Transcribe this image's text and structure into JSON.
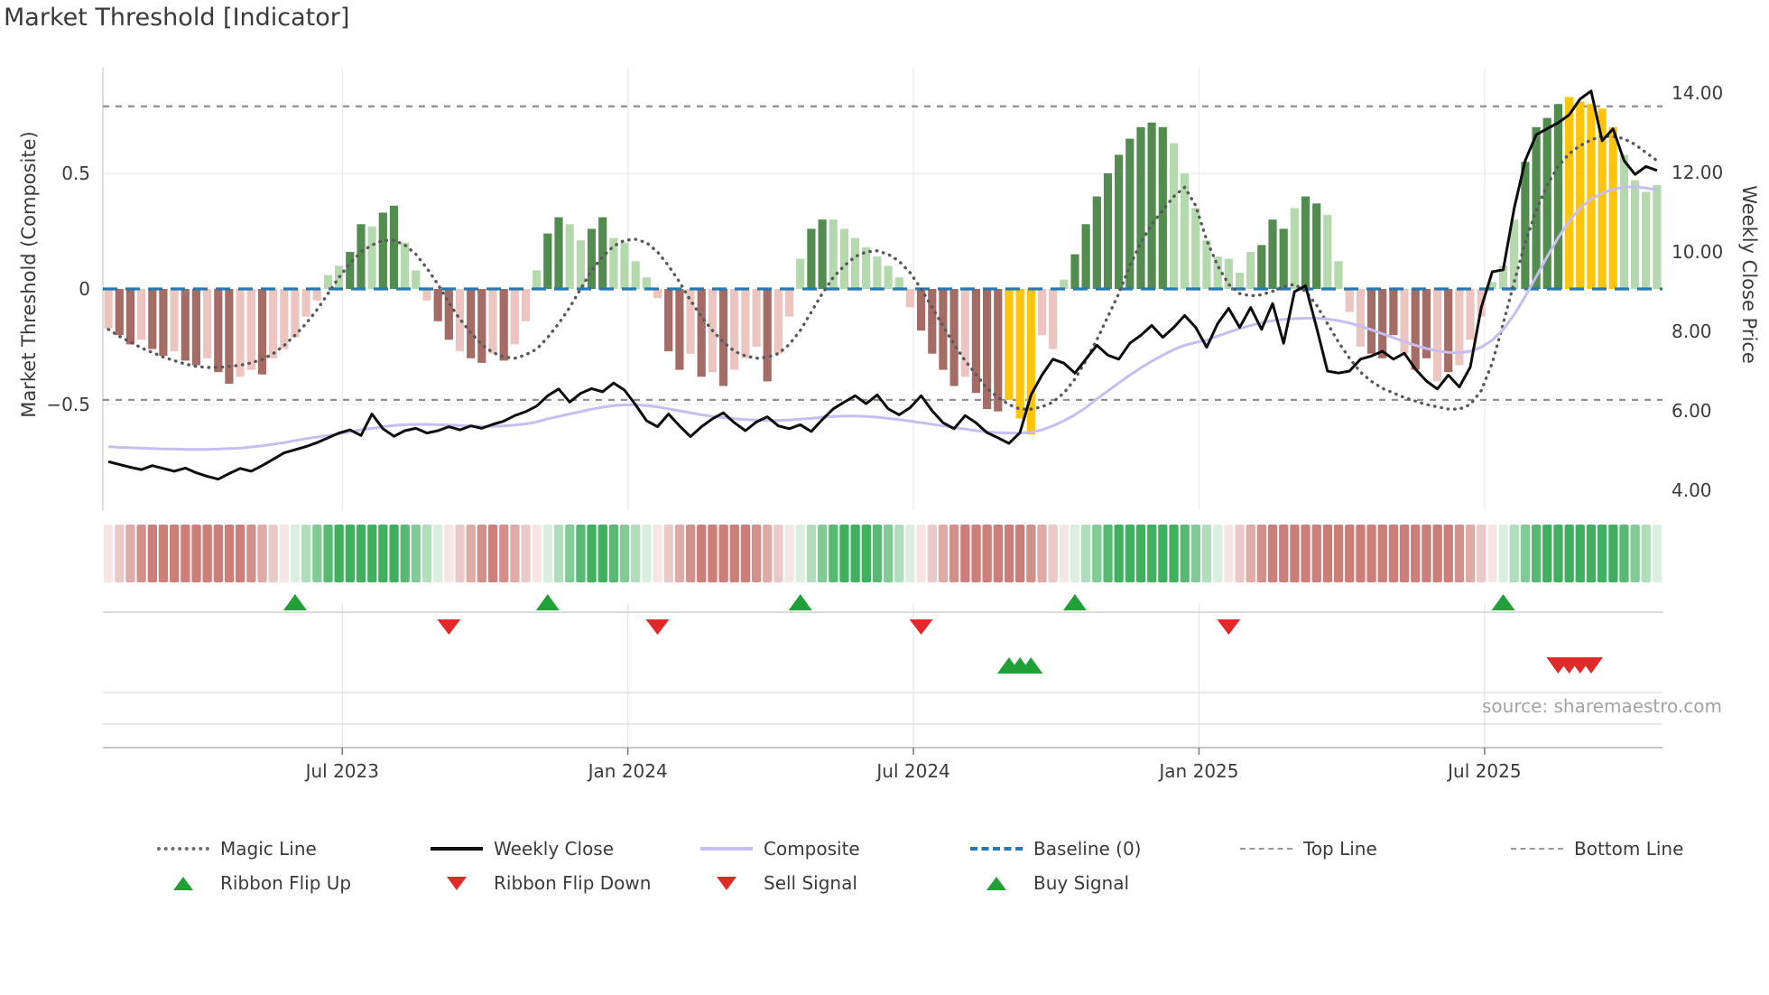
{
  "title": "Market Threshold [Indicator]",
  "source_text": "source: sharemaestro.com",
  "axes": {
    "left_label": "Market Threshold (Composite)",
    "right_label": "Weekly Close Price",
    "left_ticks": [
      {
        "label": "0.5",
        "value": 0.5
      },
      {
        "label": "0",
        "value": 0.0
      },
      {
        "label": "−0.5",
        "value": -0.5
      }
    ],
    "right_ticks": [
      {
        "label": "14.00",
        "price": 14
      },
      {
        "label": "12.00",
        "price": 12
      },
      {
        "label": "10.00",
        "price": 10
      },
      {
        "label": "8.00",
        "price": 8
      },
      {
        "label": "6.00",
        "price": 6
      },
      {
        "label": "4.00",
        "price": 4
      }
    ],
    "x_ticks": [
      {
        "label": "Jul 2023",
        "week": 21.8
      },
      {
        "label": "Jan 2024",
        "week": 47.8
      },
      {
        "label": "Jul 2024",
        "week": 73.8
      },
      {
        "label": "Jan 2025",
        "week": 99.8
      },
      {
        "label": "Jul 2025",
        "week": 125.8
      }
    ]
  },
  "colors": {
    "bar_dark_red": "#a56c66",
    "bar_light_red": "#ecc5c1",
    "bar_dark_green": "#538c4f",
    "bar_light_green": "#b4d9ad",
    "bar_yellow": "#fcc40a",
    "weekly_close": "#0d0d0d",
    "composite_line": "#c8bdf0",
    "magic_line": "#595959",
    "baseline": "#2579b2",
    "threshold_dash": "#8f8f8f",
    "ribbon_green": "#2fa850",
    "ribbon_red": "#c8736d",
    "flip_up": "#21a038",
    "flip_down": "#e02a2a",
    "grid": "#ececec",
    "text": "#3b3b3b"
  },
  "chart_data": {
    "type": "bar",
    "weeks": 142,
    "title": "Market Threshold [Indicator]",
    "ylabel_left": "Market Threshold (Composite)",
    "ylabel_right": "Weekly Close Price",
    "ylim_composite": [
      -0.96,
      0.96
    ],
    "ylim_price": [
      3.5,
      14.6
    ],
    "baseline": 0,
    "top_line": 0.79,
    "bottom_line": -0.48,
    "grid": true,
    "legend_position": "bottom",
    "bars_composite": {
      "values": [
        -0.17,
        -0.2,
        -0.24,
        -0.22,
        -0.26,
        -0.29,
        -0.27,
        -0.31,
        -0.33,
        -0.3,
        -0.36,
        -0.41,
        -0.38,
        -0.35,
        -0.37,
        -0.3,
        -0.26,
        -0.21,
        -0.12,
        -0.05,
        0.06,
        0.1,
        0.16,
        0.28,
        0.27,
        0.33,
        0.36,
        0.2,
        0.08,
        -0.05,
        -0.14,
        -0.22,
        -0.27,
        -0.3,
        -0.32,
        -0.28,
        -0.31,
        -0.24,
        -0.14,
        0.08,
        0.24,
        0.31,
        0.28,
        0.21,
        0.26,
        0.31,
        0.22,
        0.2,
        0.12,
        0.05,
        -0.04,
        -0.27,
        -0.35,
        -0.28,
        -0.38,
        -0.36,
        -0.42,
        -0.35,
        -0.3,
        -0.25,
        -0.4,
        -0.28,
        -0.12,
        0.13,
        0.26,
        0.3,
        0.3,
        0.26,
        0.22,
        0.18,
        0.14,
        0.1,
        0.05,
        -0.08,
        -0.18,
        -0.28,
        -0.35,
        -0.42,
        -0.38,
        -0.45,
        -0.52,
        -0.53,
        -0.48,
        -0.56,
        -0.63,
        -0.2,
        -0.26,
        0.04,
        0.15,
        0.28,
        0.4,
        0.5,
        0.58,
        0.65,
        0.7,
        0.72,
        0.7,
        0.63,
        0.5,
        0.35,
        0.21,
        0.14,
        0.13,
        0.07,
        0.16,
        0.19,
        0.3,
        0.26,
        0.35,
        0.4,
        0.37,
        0.32,
        0.12,
        -0.1,
        -0.25,
        -0.28,
        -0.3,
        -0.2,
        -0.28,
        -0.35,
        -0.3,
        -0.4,
        -0.36,
        -0.33,
        -0.22,
        -0.12,
        0.03,
        0.1,
        0.3,
        0.55,
        0.7,
        0.74,
        0.8,
        0.83,
        0.81,
        0.8,
        0.78,
        0.7,
        0.58,
        0.47,
        0.42,
        0.45
      ],
      "shades": "lddlddlddlddlldlllllllddlddlllddlddldlllddllddlllllddldldllldlllddllllllllddddldddyyyllldddddddddlllllllldddlddlllldddlddldllllllddddyyyyyllllll"
    },
    "weekly_close": [
      4.72,
      4.65,
      4.58,
      4.52,
      4.62,
      4.55,
      4.48,
      4.56,
      4.44,
      4.35,
      4.28,
      4.42,
      4.55,
      4.48,
      4.62,
      4.78,
      4.94,
      5.02,
      5.1,
      5.2,
      5.32,
      5.44,
      5.52,
      5.38,
      5.92,
      5.55,
      5.36,
      5.5,
      5.56,
      5.44,
      5.5,
      5.6,
      5.52,
      5.62,
      5.56,
      5.66,
      5.74,
      5.88,
      5.98,
      6.12,
      6.38,
      6.55,
      6.22,
      6.44,
      6.56,
      6.48,
      6.7,
      6.52,
      6.15,
      5.75,
      5.6,
      5.92,
      5.62,
      5.35,
      5.6,
      5.8,
      5.95,
      5.7,
      5.5,
      5.72,
      5.85,
      5.62,
      5.55,
      5.65,
      5.48,
      5.78,
      6.05,
      6.22,
      6.38,
      6.18,
      6.4,
      6.05,
      5.9,
      6.08,
      6.38,
      6.0,
      5.7,
      5.55,
      5.88,
      5.7,
      5.45,
      5.32,
      5.18,
      5.45,
      6.4,
      6.9,
      7.3,
      7.2,
      6.95,
      7.3,
      7.65,
      7.4,
      7.3,
      7.7,
      7.9,
      8.15,
      7.85,
      8.1,
      8.4,
      8.1,
      7.6,
      8.2,
      8.58,
      8.1,
      8.6,
      8.05,
      8.7,
      7.7,
      9.0,
      9.15,
      8.1,
      7.0,
      6.95,
      7.0,
      7.3,
      7.38,
      7.5,
      7.3,
      7.45,
      7.05,
      6.75,
      6.55,
      6.9,
      6.6,
      7.1,
      8.6,
      9.5,
      9.55,
      11.1,
      12.3,
      12.95,
      13.1,
      13.25,
      13.45,
      13.85,
      14.05,
      12.8,
      13.1,
      12.3,
      11.95,
      12.15,
      12.05
    ],
    "composite_line": [
      5.1,
      5.08,
      5.07,
      5.06,
      5.05,
      5.04,
      5.04,
      5.03,
      5.03,
      5.03,
      5.04,
      5.05,
      5.06,
      5.09,
      5.12,
      5.16,
      5.2,
      5.25,
      5.3,
      5.34,
      5.38,
      5.42,
      5.47,
      5.52,
      5.56,
      5.6,
      5.63,
      5.65,
      5.66,
      5.66,
      5.65,
      5.64,
      5.63,
      5.62,
      5.61,
      5.61,
      5.62,
      5.64,
      5.67,
      5.72,
      5.8,
      5.86,
      5.92,
      5.98,
      6.04,
      6.09,
      6.13,
      6.15,
      6.15,
      6.13,
      6.1,
      6.05,
      6.0,
      5.95,
      5.9,
      5.86,
      5.83,
      5.8,
      5.78,
      5.77,
      5.76,
      5.76,
      5.77,
      5.79,
      5.81,
      5.84,
      5.86,
      5.87,
      5.87,
      5.86,
      5.84,
      5.81,
      5.78,
      5.74,
      5.7,
      5.66,
      5.62,
      5.58,
      5.54,
      5.5,
      5.47,
      5.45,
      5.44,
      5.44,
      5.46,
      5.52,
      5.62,
      5.75,
      5.9,
      6.08,
      6.3,
      6.5,
      6.7,
      6.9,
      7.08,
      7.25,
      7.4,
      7.54,
      7.65,
      7.72,
      7.78,
      7.88,
      7.98,
      8.07,
      8.15,
      8.22,
      8.27,
      8.3,
      8.32,
      8.33,
      8.33,
      8.31,
      8.27,
      8.21,
      8.13,
      8.04,
      7.94,
      7.84,
      7.74,
      7.65,
      7.57,
      7.51,
      7.47,
      7.46,
      7.5,
      7.6,
      7.78,
      8.05,
      8.42,
      8.88,
      9.38,
      9.88,
      10.36,
      10.78,
      11.1,
      11.33,
      11.48,
      11.58,
      11.63,
      11.64,
      11.61,
      11.56
    ],
    "magic_line": [
      -0.175,
      -0.205,
      -0.23,
      -0.255,
      -0.275,
      -0.295,
      -0.31,
      -0.325,
      -0.335,
      -0.34,
      -0.34,
      -0.335,
      -0.33,
      -0.32,
      -0.305,
      -0.28,
      -0.245,
      -0.2,
      -0.15,
      -0.09,
      -0.02,
      0.05,
      0.11,
      0.16,
      0.19,
      0.21,
      0.21,
      0.19,
      0.15,
      0.09,
      0.02,
      -0.06,
      -0.13,
      -0.19,
      -0.24,
      -0.275,
      -0.295,
      -0.3,
      -0.285,
      -0.26,
      -0.21,
      -0.15,
      -0.08,
      0.0,
      0.08,
      0.14,
      0.185,
      0.21,
      0.215,
      0.2,
      0.16,
      0.1,
      0.03,
      -0.05,
      -0.12,
      -0.18,
      -0.23,
      -0.27,
      -0.29,
      -0.3,
      -0.295,
      -0.28,
      -0.24,
      -0.18,
      -0.1,
      -0.02,
      0.05,
      0.1,
      0.14,
      0.16,
      0.165,
      0.15,
      0.12,
      0.07,
      0.0,
      -0.08,
      -0.16,
      -0.24,
      -0.31,
      -0.37,
      -0.43,
      -0.47,
      -0.5,
      -0.52,
      -0.52,
      -0.51,
      -0.49,
      -0.45,
      -0.39,
      -0.31,
      -0.22,
      -0.12,
      -0.02,
      0.1,
      0.2,
      0.28,
      0.34,
      0.4,
      0.44,
      0.36,
      0.21,
      0.1,
      0.02,
      -0.02,
      -0.03,
      -0.025,
      -0.01,
      0.01,
      0.02,
      -0.01,
      -0.07,
      -0.15,
      -0.23,
      -0.3,
      -0.36,
      -0.4,
      -0.43,
      -0.45,
      -0.47,
      -0.485,
      -0.5,
      -0.51,
      -0.52,
      -0.52,
      -0.5,
      -0.44,
      -0.32,
      -0.15,
      0.03,
      0.2,
      0.34,
      0.45,
      0.53,
      0.585,
      0.62,
      0.645,
      0.66,
      0.66,
      0.65,
      0.625,
      0.59,
      0.555
    ],
    "ribbon": {
      "flip_up_weeks": [
        17,
        40,
        63,
        88,
        127
      ],
      "flip_down_weeks": [
        31,
        50,
        74,
        102
      ],
      "start_sign": "red"
    },
    "buy_signal_weeks": [
      82,
      83,
      84
    ],
    "sell_signal_weeks": [
      132,
      133,
      134,
      135
    ],
    "yellow_highlight_weeks": [
      82,
      83,
      84,
      132,
      133,
      134,
      135,
      136
    ]
  },
  "legend": {
    "row1": [
      {
        "label": "Magic Line",
        "swatch": "dotted",
        "color": "#6e6e6e"
      },
      {
        "label": "Weekly Close",
        "swatch": "solid",
        "color": "#111111"
      },
      {
        "label": "Composite",
        "swatch": "solid",
        "color": "#c8bdf0"
      },
      {
        "label": "Baseline (0)",
        "swatch": "dashed-long",
        "color": "#2579b2"
      },
      {
        "label": "Top Line",
        "swatch": "dashed-small",
        "color": "#999999"
      },
      {
        "label": "Bottom Line",
        "swatch": "dashed-small",
        "color": "#999999"
      }
    ],
    "row2": [
      {
        "label": "Ribbon Flip Up",
        "swatch": "tri-up",
        "color": "#21a038"
      },
      {
        "label": "Ribbon Flip Down",
        "swatch": "tri-down",
        "color": "#e02a2a"
      },
      {
        "label": "Sell Signal",
        "swatch": "tri-down",
        "color": "#e02a2a"
      },
      {
        "label": "Buy Signal",
        "swatch": "tri-up",
        "color": "#21a038"
      }
    ]
  }
}
